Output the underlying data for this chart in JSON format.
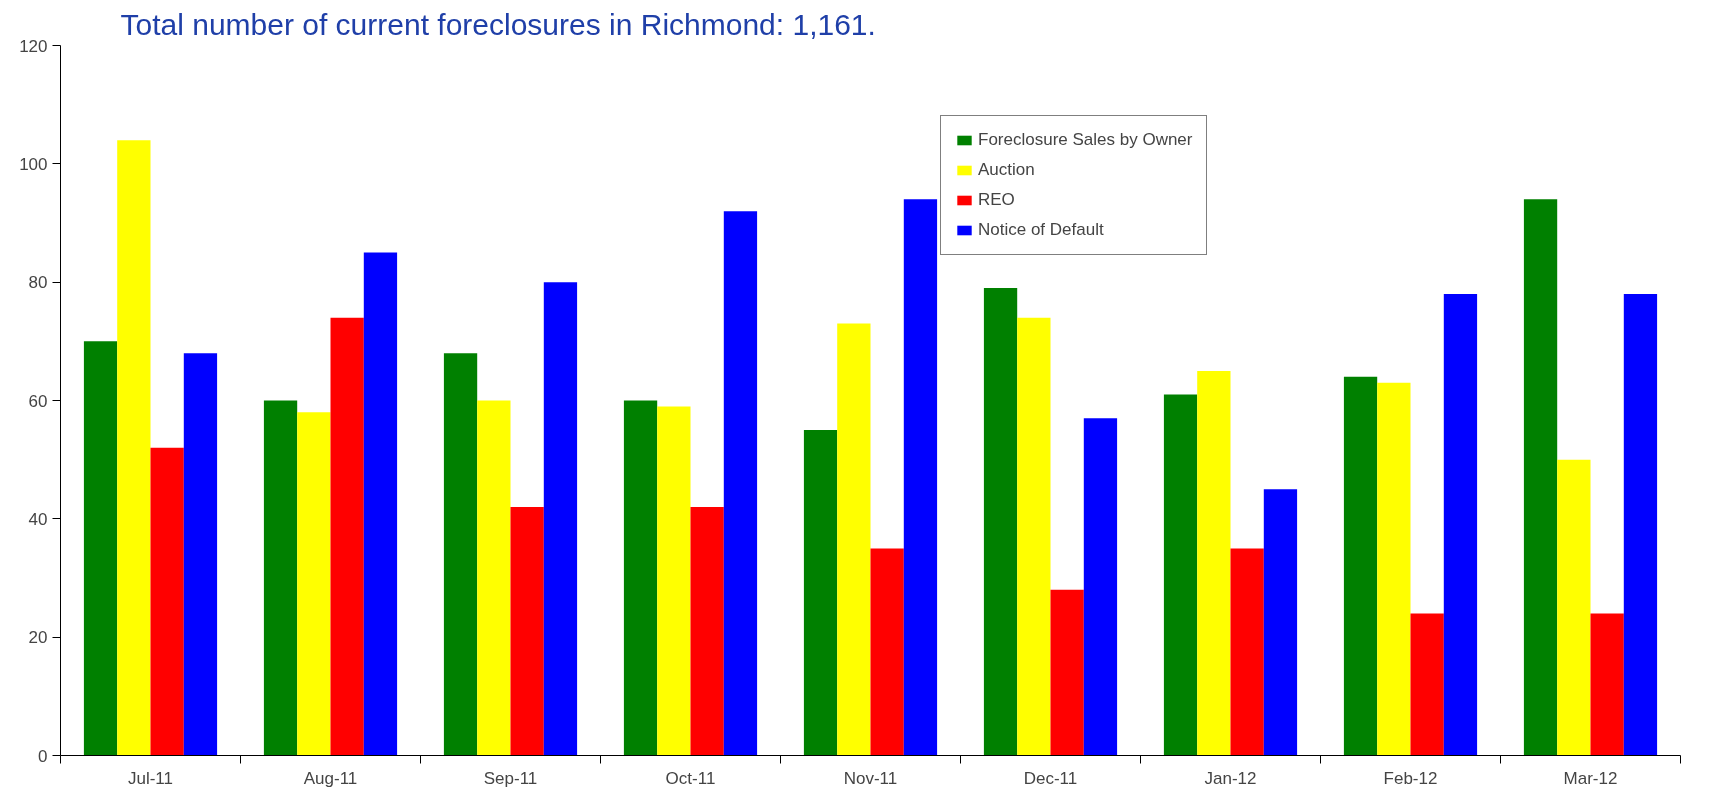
{
  "chart_data": {
    "type": "bar",
    "title": "Total number of current foreclosures in Richmond: 1,161.",
    "categories": [
      "Jul-11",
      "Aug-11",
      "Sep-11",
      "Oct-11",
      "Nov-11",
      "Dec-11",
      "Jan-12",
      "Feb-12",
      "Mar-12"
    ],
    "series": [
      {
        "name": "Foreclosure Sales by Owner",
        "color": "#008000",
        "values": [
          70,
          60,
          68,
          60,
          55,
          79,
          61,
          64,
          94
        ]
      },
      {
        "name": "Auction",
        "color": "#ffff00",
        "values": [
          104,
          58,
          60,
          59,
          73,
          74,
          65,
          63,
          50
        ]
      },
      {
        "name": "REO",
        "color": "#ff0000",
        "values": [
          52,
          74,
          42,
          42,
          35,
          28,
          35,
          24,
          24
        ]
      },
      {
        "name": "Notice of Default",
        "color": "#0000ff",
        "values": [
          68,
          85,
          80,
          92,
          94,
          57,
          45,
          78,
          78
        ]
      }
    ],
    "ylim": [
      0,
      120
    ],
    "yticks": [
      0,
      20,
      40,
      60,
      80,
      100,
      120
    ],
    "grid": false,
    "legend": "top right"
  }
}
